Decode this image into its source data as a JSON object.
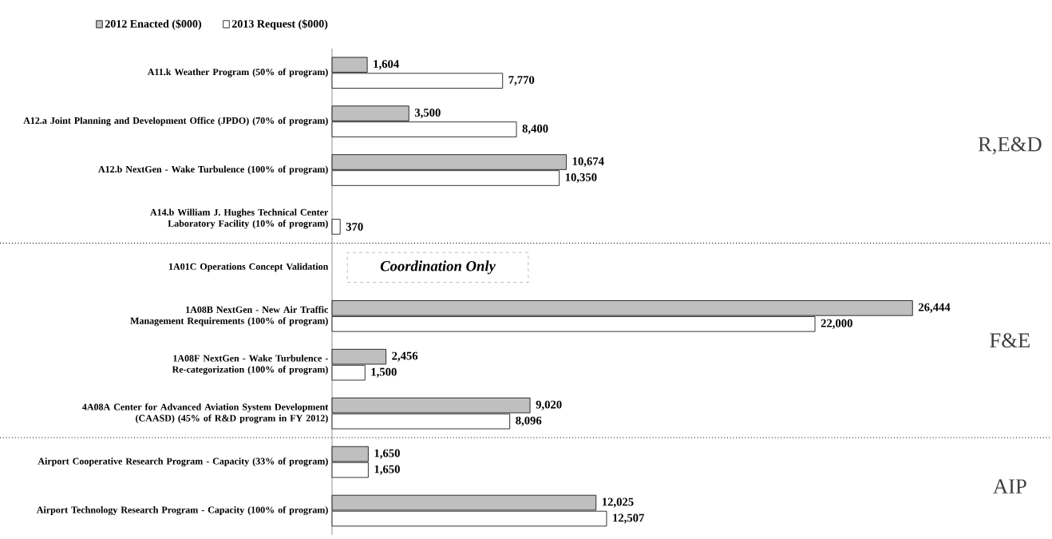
{
  "chart_data": {
    "type": "bar",
    "orientation": "horizontal",
    "categories": [
      "A11.k Weather Program (50% of program)",
      "A12.a Joint Planning and Development Office (JPDO) (70% of program)",
      "A12.b NextGen - Wake Turbulence (100% of program)",
      "A14.b William J. Hughes Technical Center Laboratory Facility (10% of program)",
      "1A01C Operations Concept Validation",
      "1A08B NextGen - New Air Traffic Management Requirements (100% of program)",
      "1A08F NextGen - Wake Turbulence - Re-categorization (100% of program)",
      "4A08A Center for Advanced Aviation System Development (CAASD) (45% of R&D program in FY 2012)",
      "Airport Cooperative Research Program - Capacity (33% of program)",
      "Airport Technology Research Program - Capacity (100% of program)"
    ],
    "series": [
      {
        "name": "2012 Enacted ($000)",
        "color": "#bfbfbf",
        "values": [
          1604,
          3500,
          10674,
          null,
          null,
          26444,
          2456,
          9020,
          1650,
          12025
        ],
        "value_labels": [
          "1,604",
          "3,500",
          "10,674",
          null,
          null,
          "26,444",
          "2,456",
          "9,020",
          "1,650",
          "12,025"
        ]
      },
      {
        "name": "2013 Request ($000)",
        "color": "#ffffff",
        "values": [
          7770,
          8400,
          10350,
          370,
          null,
          22000,
          1500,
          8096,
          1650,
          12507
        ],
        "value_labels": [
          "7,770",
          "8,400",
          "10,350",
          "370",
          null,
          "22,000",
          "1,500",
          "8,096",
          "1,650",
          "12,507"
        ]
      }
    ],
    "legend": "top left",
    "tick_labels": "y",
    "annotations": [
      "R,E&D",
      "Coordination Only",
      "F&E",
      "AIP"
    ]
  }
}
